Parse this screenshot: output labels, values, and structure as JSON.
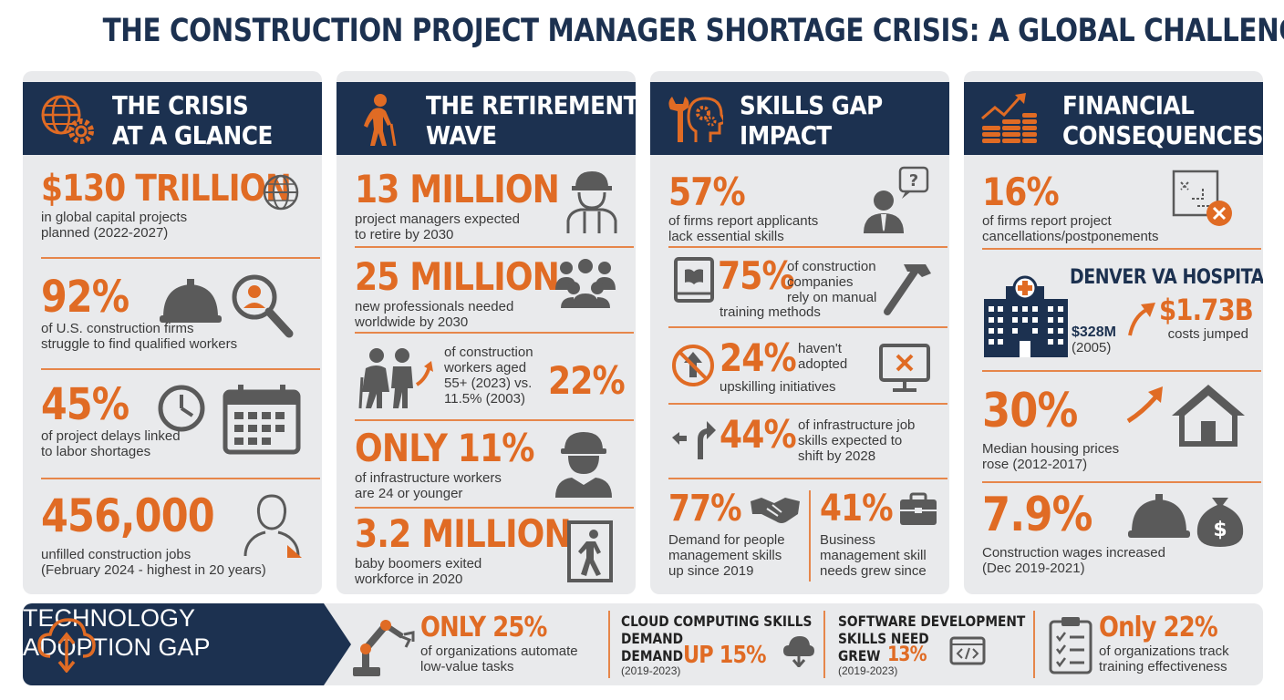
{
  "title": "THE CONSTRUCTION PROJECT MANAGER SHORTAGE CRISIS: A GLOBAL CHALLENGE",
  "colors": {
    "navy": "#1c3150",
    "orange": "#e06b24",
    "panel": "#e9eaec",
    "icon_gray": "#5a5a5a"
  },
  "col1": {
    "heading_line1": "THE CRISIS",
    "heading_line2": "AT A GLANCE",
    "heading_icon": "globe-gear-icon",
    "stats": [
      {
        "value": "$130 TRILLION",
        "line1": "in global capital projects",
        "line2": "planned (2022-2027)",
        "icon": "globe-icon"
      },
      {
        "value": "92%",
        "line1": "of U.S. construction firms",
        "line2": "struggle to find qualified workers",
        "icon": "hardhat-magnifier-icon"
      },
      {
        "value": "45%",
        "line1": "of project delays linked",
        "line2": "to labor shortages",
        "icon": "clock-calendar-icon"
      },
      {
        "value": "456,000",
        "line1": "unfilled construction jobs",
        "line2": "(February 2024 - highest in 20 years)",
        "icon": "person-silhouette-icon"
      }
    ]
  },
  "col2": {
    "heading_line1": "THE RETIREMENT",
    "heading_line2": "WAVE",
    "heading_icon": "elderly-person-icon",
    "stats": [
      {
        "value": "13 MILLION",
        "line1": "project managers expected",
        "line2": "to retire by 2030",
        "icon": "worker-icon"
      },
      {
        "value": "25 MILLION",
        "line1": "new professionals needed",
        "line2": "worldwide by 2030",
        "icon": "group-icon"
      },
      {
        "value": "22%",
        "line1": "of construction",
        "line2": "workers aged",
        "line3": "55+ (2023) vs.",
        "line4": "11.5% (2003)",
        "icon": "elderly-couple-icon"
      },
      {
        "value": "ONLY 11%",
        "line1": "of infrastructure workers",
        "line2": "are 24 or younger",
        "icon": "young-worker-icon"
      },
      {
        "value": "3.2 MILLION",
        "line1": "baby boomers exited",
        "line2": "workforce in 2020",
        "icon": "exit-door-icon"
      }
    ]
  },
  "col3": {
    "heading_line1": "SKILLS GAP",
    "heading_line2": "IMPACT",
    "heading_icon": "wrench-head-gears-icon",
    "stats": [
      {
        "value": "57%",
        "line1": "of firms report applicants",
        "line2": "lack essential skills",
        "icon": "person-question-icon"
      },
      {
        "value": "75%",
        "line1": "of construction",
        "line2": "companies",
        "line3": "rely on manual",
        "line4": "training methods",
        "icon": "book-hammer-icon"
      },
      {
        "value": "24%",
        "line1": "haven't",
        "line2": "adopted",
        "line3": "upskilling initiatives",
        "icon": "no-upskill-monitor-icon"
      },
      {
        "value": "44%",
        "line1": "of infrastructure job",
        "line2": "skills expected to",
        "line3": "shift by 2028",
        "icon": "direction-arrows-icon"
      },
      {
        "value": "77%",
        "line1": "Demand for people",
        "line2": "management skills",
        "line3": "up since 2019",
        "icon": "handshake-icon"
      },
      {
        "value": "41%",
        "line1": "Business",
        "line2": "management skill",
        "line3": "needs grew since",
        "icon": "briefcase-icon"
      }
    ]
  },
  "col4": {
    "heading_line1": "FINANCIAL",
    "heading_line2": "CONSEQUENCES",
    "heading_icon": "coins-chart-icon",
    "stats": [
      {
        "value": "16%",
        "line1": "of firms report project",
        "line2": "cancellations/postponements",
        "icon": "cancelled-plan-icon"
      },
      {
        "hospital_title": "DENVER VA HOSPITAL",
        "before_value": "$328M",
        "before_year": "(2005)",
        "after_value": "$1.73B",
        "after_label": "costs jumped",
        "icon": "hospital-icon"
      },
      {
        "value": "30%",
        "line1": "Median housing prices",
        "line2": "rose (2012-2017)",
        "icon": "house-arrow-icon"
      },
      {
        "value": "7.9%",
        "line1": "Construction wages increased",
        "line2": "(Dec 2019-2021)",
        "icon": "hardhat-moneybag-icon"
      }
    ]
  },
  "bottom": {
    "heading_line1": "TECHNOLOGY",
    "heading_line2": "ADOPTION GAP",
    "heading_icon": "cloud-upload-icon",
    "items": [
      {
        "value": "ONLY 25%",
        "line1": "of organizations automate",
        "line2": "low-value tasks",
        "icon": "robot-arm-icon"
      },
      {
        "label1": "CLOUD COMPUTING SKILLS",
        "label2": "DEMAND",
        "label3": "DEMAND",
        "value": "UP 15%",
        "note": "(2019-2023)",
        "icon": "cloud-download-icon"
      },
      {
        "label1": "SOFTWARE DEVELOPMENT",
        "label2": "SKILLS NEED",
        "label3": "GREW",
        "value": "13%",
        "note": "(2019-2023)",
        "icon": "code-window-icon"
      },
      {
        "value": "Only 22%",
        "line1": "of organizations track",
        "line2": "training effectiveness",
        "icon": "checklist-icon"
      }
    ]
  }
}
